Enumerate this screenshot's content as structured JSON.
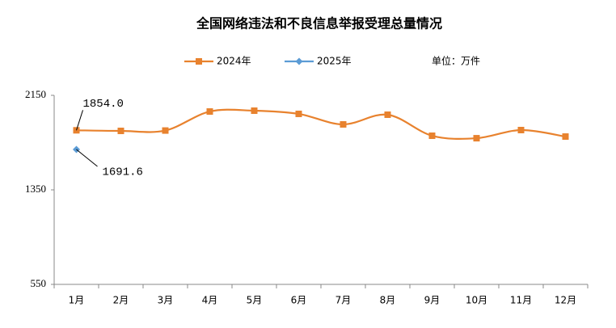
{
  "chart_data": {
    "type": "line",
    "title": "全国网络违法和不良信息举报受理总量情况",
    "annotation": "单位：万件",
    "categories": [
      "1月",
      "2月",
      "3月",
      "4月",
      "5月",
      "6月",
      "7月",
      "8月",
      "9月",
      "10月",
      "11月",
      "12月"
    ],
    "series": [
      {
        "name": "2024年",
        "color": "#E8822E",
        "marker": "square",
        "values": [
          1854.0,
          1849,
          1852,
          2013,
          2020,
          1993,
          1904,
          1986,
          1808,
          1787,
          1856,
          1801
        ],
        "value_labels": [
          "1854.0",
          null,
          null,
          null,
          null,
          null,
          null,
          null,
          null,
          null,
          null,
          null
        ]
      },
      {
        "name": "2025年",
        "color": "#5B9BD5",
        "marker": "diamond",
        "values": [
          1691.6,
          null,
          null,
          null,
          null,
          null,
          null,
          null,
          null,
          null,
          null,
          null
        ],
        "value_labels": [
          "1691.6",
          null,
          null,
          null,
          null,
          null,
          null,
          null,
          null,
          null,
          null,
          null
        ]
      }
    ],
    "ylim": [
      550,
      2150
    ],
    "yticks": [
      550,
      1350,
      2150
    ],
    "grid": false,
    "legend": "top"
  }
}
